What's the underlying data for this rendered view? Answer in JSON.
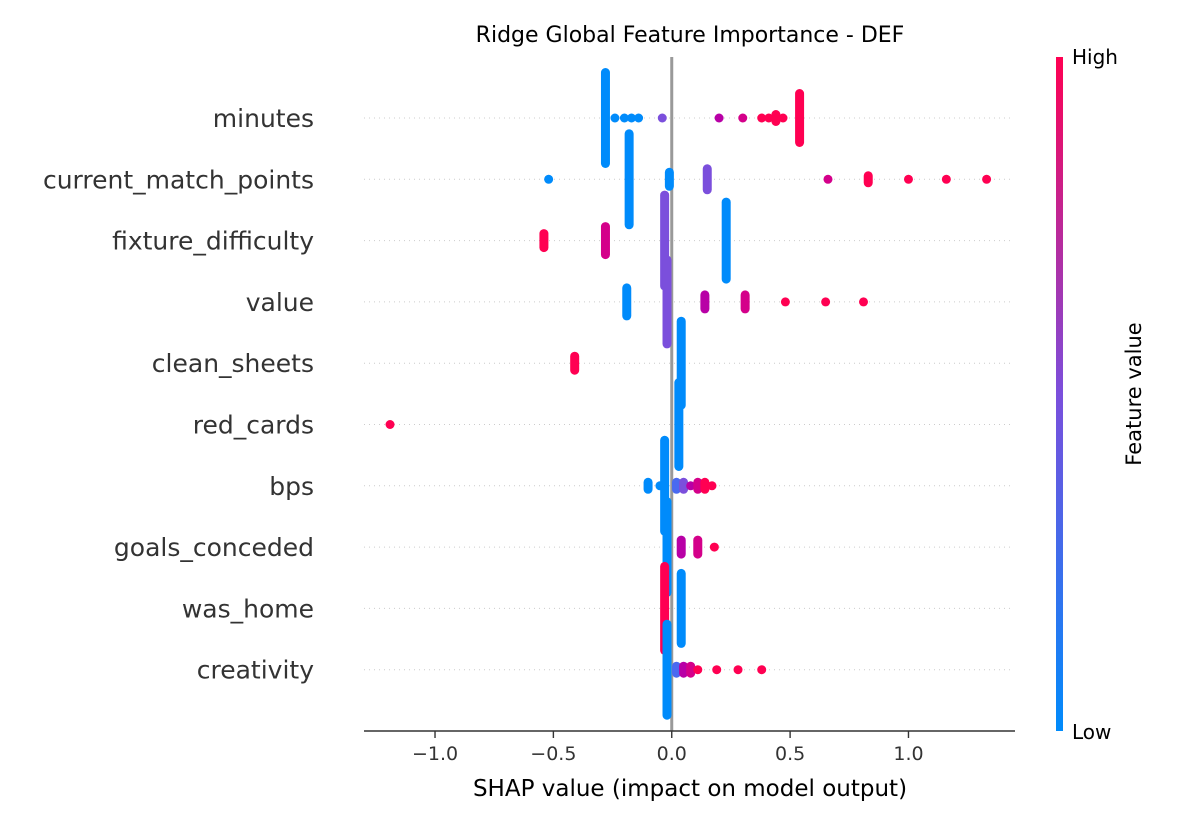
{
  "chart_data": {
    "type": "scatter",
    "title": "Ridge Global Feature Importance - DEF",
    "xlabel": "SHAP value (impact on model output)",
    "xlim": [
      -1.3,
      1.45
    ],
    "xticks": [
      {
        "value": -1.0,
        "label": "−1.0"
      },
      {
        "value": -0.5,
        "label": "−0.5"
      },
      {
        "value": 0.0,
        "label": "0.0"
      },
      {
        "value": 0.5,
        "label": "0.5"
      },
      {
        "value": 1.0,
        "label": "1.0"
      }
    ],
    "colorbar": {
      "title": "Feature value",
      "high_label": "High",
      "low_label": "Low",
      "high_color": "#ff0052",
      "mid_color": "#7b4fdc",
      "low_color": "#008bfb"
    },
    "features": [
      {
        "name": "minutes",
        "points": [
          [
            -0.28,
            0.0,
            "#008bfb",
            14
          ],
          [
            -0.24,
            0.0,
            "#008bfb",
            1
          ],
          [
            -0.2,
            0.0,
            "#008bfb",
            1
          ],
          [
            -0.17,
            0.0,
            "#008bfb",
            1
          ],
          [
            -0.14,
            0.0,
            "#008bfb",
            1
          ],
          [
            -0.04,
            0.0,
            "#7b4fdc",
            1
          ],
          [
            0.2,
            0.0,
            "#b800a6",
            1
          ],
          [
            0.3,
            0.0,
            "#d4008a",
            1
          ],
          [
            0.38,
            0.0,
            "#ff0052",
            1
          ],
          [
            0.41,
            0.0,
            "#ff0052",
            1
          ],
          [
            0.44,
            0.0,
            "#ff0052",
            2
          ],
          [
            0.47,
            0.0,
            "#ff0052",
            1
          ],
          [
            0.54,
            0.0,
            "#ff0052",
            8
          ]
        ]
      },
      {
        "name": "current_match_points",
        "points": [
          [
            -0.52,
            0.0,
            "#008bfb",
            1
          ],
          [
            -0.18,
            0.0,
            "#008bfb",
            14
          ],
          [
            -0.01,
            0.0,
            "#008bfb",
            3
          ],
          [
            0.15,
            0.0,
            "#7b4fdc",
            4
          ],
          [
            0.66,
            0.0,
            "#d4008a",
            1
          ],
          [
            0.83,
            0.0,
            "#ff0052",
            2
          ],
          [
            1.0,
            0.0,
            "#ff0052",
            1
          ],
          [
            1.16,
            0.0,
            "#ff0052",
            1
          ],
          [
            1.33,
            0.0,
            "#ff0052",
            1
          ]
        ]
      },
      {
        "name": "fixture_difficulty",
        "points": [
          [
            -0.54,
            0.0,
            "#ff0052",
            3
          ],
          [
            -0.28,
            0.0,
            "#d4008a",
            5
          ],
          [
            -0.03,
            0.0,
            "#7b4fdc",
            14
          ],
          [
            0.23,
            0.0,
            "#008bfb",
            12
          ]
        ]
      },
      {
        "name": "value",
        "points": [
          [
            -0.19,
            0.0,
            "#008bfb",
            5
          ],
          [
            -0.02,
            0.0,
            "#7b4fdc",
            13
          ],
          [
            0.14,
            0.0,
            "#b800a6",
            3
          ],
          [
            0.31,
            0.0,
            "#d4008a",
            3
          ],
          [
            0.48,
            0.0,
            "#ff0052",
            1
          ],
          [
            0.65,
            0.0,
            "#ff0052",
            1
          ],
          [
            0.81,
            0.0,
            "#ff0052",
            1
          ]
        ]
      },
      {
        "name": "clean_sheets",
        "points": [
          [
            -0.41,
            0.0,
            "#ff0052",
            3
          ],
          [
            0.04,
            0.0,
            "#008bfb",
            13
          ]
        ]
      },
      {
        "name": "red_cards",
        "points": [
          [
            -1.19,
            0.0,
            "#ff0052",
            1
          ],
          [
            0.03,
            0.0,
            "#008bfb",
            13
          ]
        ]
      },
      {
        "name": "bps",
        "points": [
          [
            -0.1,
            0.0,
            "#008bfb",
            2
          ],
          [
            -0.05,
            0.0,
            "#008bfb",
            1
          ],
          [
            -0.03,
            0.0,
            "#008bfb",
            14
          ],
          [
            0.02,
            0.0,
            "#4a6af0",
            2
          ],
          [
            0.05,
            0.0,
            "#7b4fdc",
            2
          ],
          [
            0.08,
            0.0,
            "#b800a6",
            1
          ],
          [
            0.11,
            0.0,
            "#d4008a",
            2
          ],
          [
            0.14,
            0.0,
            "#ff0052",
            2
          ],
          [
            0.17,
            0.0,
            "#ff0052",
            1
          ]
        ]
      },
      {
        "name": "goals_conceded",
        "points": [
          [
            -0.02,
            0.0,
            "#008bfb",
            14
          ],
          [
            0.04,
            0.0,
            "#b800a6",
            3
          ],
          [
            0.11,
            0.0,
            "#d4008a",
            3
          ],
          [
            0.18,
            0.0,
            "#ff0052",
            1
          ]
        ]
      },
      {
        "name": "was_home",
        "points": [
          [
            -0.03,
            0.0,
            "#ff0052",
            13
          ],
          [
            0.04,
            0.0,
            "#008bfb",
            11
          ]
        ]
      },
      {
        "name": "creativity",
        "points": [
          [
            -0.02,
            0.0,
            "#008bfb",
            14
          ],
          [
            0.02,
            0.0,
            "#4a6af0",
            2
          ],
          [
            0.05,
            0.0,
            "#b800a6",
            2
          ],
          [
            0.08,
            0.0,
            "#d4008a",
            2
          ],
          [
            0.11,
            0.0,
            "#ff0052",
            1
          ],
          [
            0.19,
            0.0,
            "#ff0052",
            1
          ],
          [
            0.28,
            0.0,
            "#ff0052",
            1
          ],
          [
            0.38,
            0.0,
            "#ff0052",
            1
          ]
        ]
      }
    ]
  }
}
